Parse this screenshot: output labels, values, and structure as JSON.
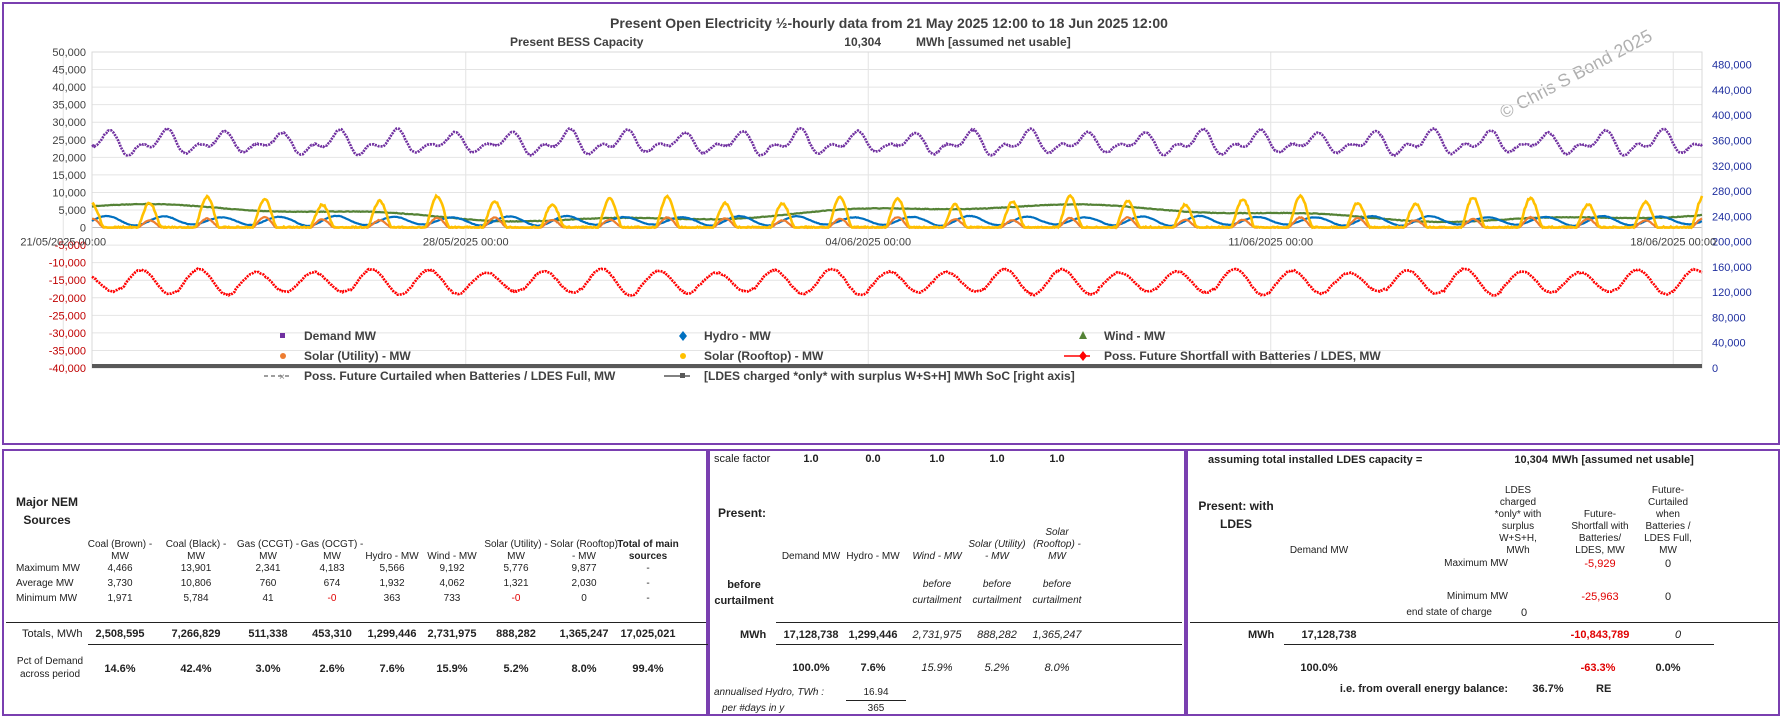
{
  "chart_data": {
    "type": "line",
    "title": "Present Open Electricity ½-hourly data from 21 May 2025 12:00  to 18 Jun 2025 12:00",
    "subtitle_label": "Present BESS Capacity",
    "subtitle_value": "10,304",
    "subtitle_unit": "MWh [assumed net usable]",
    "watermark": "© Chris S Bond  2025",
    "left_axis": {
      "min": -40000,
      "max": 50000,
      "step": 5000,
      "ticks": [
        "50,000",
        "45,000",
        "40,000",
        "35,000",
        "30,000",
        "25,000",
        "20,000",
        "15,000",
        "10,000",
        "5,000",
        "0",
        "-5,000",
        "-10,000",
        "-15,000",
        "-20,000",
        "-25,000",
        "-30,000",
        "-35,000",
        "-40,000"
      ]
    },
    "right_axis": {
      "min": 0,
      "max": 500000,
      "step": 40000,
      "ticks": [
        "480,000",
        "440,000",
        "400,000",
        "360,000",
        "320,000",
        "280,000",
        "240,000",
        "200,000",
        "160,000",
        "120,000",
        "80,000",
        "40,000",
        "0"
      ]
    },
    "x_axis": {
      "start": "21/05/2025 12:00",
      "end": "18/06/2025 12:00",
      "tick_labels": [
        "21/05/2025 00:00",
        "28/05/2025 00:00",
        "04/06/2025 00:00",
        "11/06/2025 00:00",
        "18/06/2025 00:00"
      ]
    },
    "grid": true,
    "legend_position": "bottom",
    "series": [
      {
        "name": "Demand MW",
        "color": "#7030a0",
        "marker": "square",
        "base": 24000,
        "amp": 4500,
        "min": 19500,
        "max": 32000
      },
      {
        "name": "Hydro -  MW",
        "color": "#0070c0",
        "marker": "diamond",
        "base": 1900,
        "amp": 1500,
        "min": 363,
        "max": 5566
      },
      {
        "name": "Wind -  MW",
        "color": "#548235",
        "marker": "triangle",
        "base": 4100,
        "amp": 2000,
        "min": 733,
        "max": 9192
      },
      {
        "name": "Solar (Utility) -  MW",
        "color": "#ed7d31",
        "marker": "circle",
        "base": 1300,
        "amp": 2500,
        "min": 0,
        "max": 5776
      },
      {
        "name": "Solar (Rooftop) -  MW",
        "color": "#ffc000",
        "marker": "circle",
        "base": 2000,
        "amp": 7000,
        "min": 0,
        "max": 9877
      },
      {
        "name": "Poss. Future Shortfall with Batteries / LDES, MW",
        "color": "#ff0000",
        "marker": "diamond-line",
        "base": -15500,
        "amp": 4500,
        "min": -25963,
        "max": -5929
      },
      {
        "name": "Poss. Future Curtailed when Batteries / LDES Full, MW",
        "color": "#7f7f7f",
        "marker": "x-dash",
        "base": 0,
        "amp": 0,
        "min": 0,
        "max": 0
      },
      {
        "name": "[LDES charged *only* with surplus W+S+H]  MWh SoC [right axis]",
        "color": "#595959",
        "marker": "square-line",
        "base": 0,
        "amp": 0,
        "min": 0,
        "max": 0
      }
    ]
  },
  "sources_table": {
    "title": "Major NEM Sources",
    "headers": [
      "Coal (Brown) - MW",
      "Coal (Black) - MW",
      "Gas (CCGT) - MW",
      "Gas (OCGT) - MW",
      "Hydro -  MW",
      "Wind -  MW",
      "Solar (Utility) - MW",
      "Solar (Rooftop) - MW",
      "Total of main sources"
    ],
    "rows": [
      {
        "label": "Maximum MW",
        "values": [
          "4,466",
          "13,901",
          "2,341",
          "4,183",
          "5,566",
          "9,192",
          "5,776",
          "9,877",
          "-"
        ]
      },
      {
        "label": "Average MW",
        "values": [
          "3,730",
          "10,806",
          "760",
          "674",
          "1,932",
          "4,062",
          "1,321",
          "2,030",
          "-"
        ]
      },
      {
        "label": "Minimum MW",
        "values": [
          "1,971",
          "5,784",
          "41",
          "-0",
          "363",
          "733",
          "-0",
          "0",
          "-"
        ]
      }
    ],
    "totals_label": "Totals, MWh",
    "totals": [
      "2,508,595",
      "7,266,829",
      "511,338",
      "453,310",
      "1,299,446",
      "2,731,975",
      "888,282",
      "1,365,247",
      "17,025,021"
    ],
    "pct_label": "Pct of Demand across period",
    "pct": [
      "14.6%",
      "42.4%",
      "3.0%",
      "2.6%",
      "7.6%",
      "15.9%",
      "5.2%",
      "8.0%",
      "99.4%"
    ]
  },
  "present_table": {
    "scale_label": "scale factor",
    "scale": [
      "1.0",
      "0.0",
      "1.0",
      "1.0",
      "1.0"
    ],
    "title": "Present:",
    "headers": [
      "Demand MW",
      "Hydro -  MW",
      "Wind -  MW",
      "Solar (Utility) - MW",
      "Solar (Rooftop) - MW"
    ],
    "before_label": "before curtailment",
    "before_note": "before curtailment",
    "mwh_label": "MWh",
    "totals": [
      "17,128,738",
      "1,299,446",
      "2,731,975",
      "888,282",
      "1,365,247"
    ],
    "pct": [
      "100.0%",
      "7.6%",
      "15.9%",
      "5.2%",
      "8.0%"
    ],
    "annual_label": "annualised Hydro,  TWh :",
    "annual_value": "16.94",
    "days_label": "per #days in y",
    "days_value": "365"
  },
  "ldes_table": {
    "assume_label": "assuming total installed LDES capacity =",
    "capacity": "10,304",
    "capacity_unit": "MWh [assumed net usable]",
    "title": "Present: with LDES",
    "headers": [
      "Demand MW",
      "LDES charged *only* with surplus W+S+H, MWh",
      "Future- Shortfall with Batteries/ LDES, MW",
      "Future- Curtailed when Batteries / LDES Full, MW"
    ],
    "max_label": "Maximum MW",
    "max_shortfall": "-5,929",
    "max_curtailed": "0",
    "min_label": "Minimum MW",
    "min_shortfall": "-25,963",
    "min_curtailed": "0",
    "end_label": "end state of charge",
    "end_value": "0",
    "mwh_label": "MWh",
    "demand_total": "17,128,738",
    "shortfall_total": "-10,843,789",
    "curtailed_total": "0",
    "demand_pct": "100.0%",
    "shortfall_pct": "-63.3%",
    "curtailed_pct": "0.0%",
    "balance_label": "i.e. from overall energy balance:",
    "balance_value": "36.7%",
    "balance_unit": "RE"
  }
}
